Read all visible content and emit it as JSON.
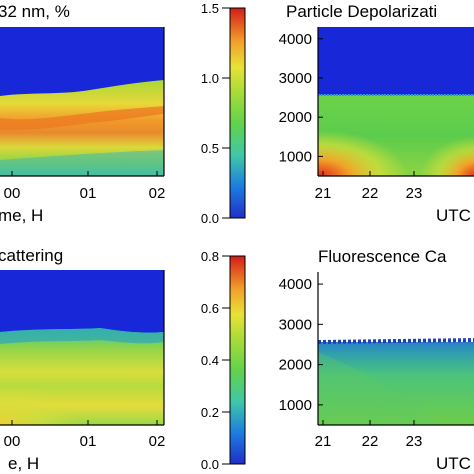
{
  "colors": {
    "colormap": [
      "#2020c8",
      "#1c7de0",
      "#3fc8a0",
      "#5fd24a",
      "#9fdc3a",
      "#e4e236",
      "#f2a02a",
      "#e85a20",
      "#d42018"
    ],
    "background_high": "#1828d8"
  },
  "chart_data": [
    {
      "type": "heatmap",
      "title": "32 nm, %",
      "xlabel": "me, H",
      "x_ticks": [
        "00",
        "01",
        "02"
      ],
      "y_ticks": [],
      "layer_top_fraction": 0.45
    },
    {
      "type": "heatmap",
      "title": "Particle Depolarizati",
      "xlabel": "UTC",
      "x_ticks": [
        "21",
        "22",
        "23"
      ],
      "y_ticks": [
        "4000",
        "3000",
        "2000",
        "1000"
      ],
      "ylim": [
        500,
        4300
      ],
      "layer_top": 2350
    },
    {
      "type": "heatmap",
      "title": "cattering",
      "xlabel": "e, H",
      "x_ticks": [
        "00",
        "01",
        "02"
      ],
      "y_ticks": [],
      "layer_top_fraction": 0.45
    },
    {
      "type": "heatmap",
      "title": "Fluorescence Ca",
      "xlabel": "UTC",
      "x_ticks": [
        "21",
        "22",
        "23"
      ],
      "y_ticks": [
        "4000",
        "3000",
        "2000",
        "1000"
      ],
      "ylim": [
        500,
        4300
      ],
      "layer_top": 2350
    }
  ],
  "colorbars": [
    {
      "ticks": [
        "1.5",
        "1.0",
        "0.5",
        "0.0"
      ],
      "range": [
        0,
        1.5
      ]
    },
    {
      "ticks": [
        "0.8",
        "0.6",
        "0.4",
        "0.2",
        "0.0"
      ],
      "range": [
        0,
        0.8
      ]
    }
  ]
}
